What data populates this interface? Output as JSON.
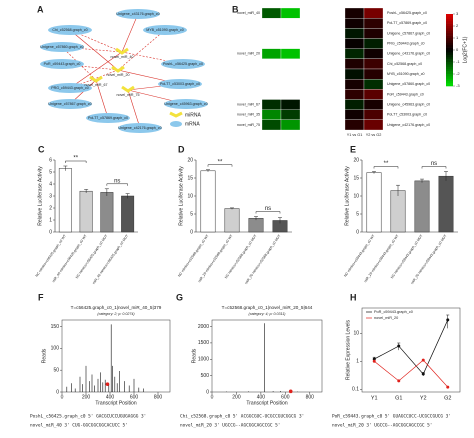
{
  "chart_data": [
    {
      "type": "network",
      "label": "A",
      "mrnas": [
        "Unigene_c43176.graph_c0",
        "Chi_c52568.graph_c0",
        "MYB_c51090.graph_c0",
        "Unigene_c57860.graph_c0",
        "PoR_c59443.graph_c0",
        "PoshL_c56425.graph_c0",
        "PRG_c59443.graph_c0",
        "PoLT7_c53003.graph_c0",
        "Unigene_c57867.graph_c0",
        "Unigene_c45963.graph_c0",
        "PoLT7_c57869.graph_c0",
        "Unigene_c42176.graph_c0"
      ],
      "mirnas": [
        "novel_miR_40",
        "novel_miR_20",
        "novel_miR_67",
        "novel_miR_75"
      ],
      "legend": [
        {
          "name": "miRNA",
          "color": "#f3e23c"
        },
        {
          "name": "mRNA",
          "color": "#8cc8ec"
        }
      ],
      "edge_color": "#d9322b"
    },
    {
      "type": "heatmap",
      "label": "B",
      "left": {
        "rows": [
          "novel_miR_40",
          null,
          null,
          null,
          "novel_miR_20",
          null,
          null,
          null,
          null,
          "novel_miR_67",
          "novel_miR_35",
          "novel_miR_75"
        ],
        "values": [
          [
            -1.2,
            -2.6
          ],
          [
            null,
            null
          ],
          [
            null,
            null
          ],
          [
            null,
            null
          ],
          [
            -2.2,
            -2.6
          ],
          [
            null,
            null
          ],
          [
            null,
            null
          ],
          [
            null,
            null
          ],
          [
            null,
            null
          ],
          [
            -0.6,
            -0.3
          ],
          [
            -1.8,
            -0.8
          ],
          [
            -1.0,
            -2.0
          ]
        ]
      },
      "right": {
        "rows": [
          "PoshL_c56425.graph_c0",
          "PoLT7_c57869.graph_c0",
          "Unigene_c57867.graph_c0",
          "PRG_c59443.graph_c0",
          "Unigene_c43176.graph_c0",
          "Chi_c52568.graph_c0",
          "MYB_c51090.graph_c0",
          "Unigene_c57860.graph_c0",
          "PoR_c59443.graph_c0",
          "Unigene_c45963.graph_c0",
          "PoLT7_c53003.graph_c0",
          "Unigene_c42176.graph_c0"
        ],
        "values": [
          [
            0.3,
            1.6
          ],
          [
            0.2,
            0.6
          ],
          [
            -0.3,
            0.4
          ],
          [
            0.1,
            -0.4
          ],
          [
            -0.5,
            0.2
          ],
          [
            0.4,
            0.8
          ],
          [
            -0.2,
            0.5
          ],
          [
            0.3,
            -0.6
          ],
          [
            0.6,
            1.2
          ],
          [
            -0.4,
            0.3
          ],
          [
            0.2,
            1.0
          ],
          [
            0.5,
            1.4
          ]
        ]
      },
      "columns": [
        "Y1 vs G1",
        "Y2 vs G2"
      ],
      "colorbar": {
        "label": "Log2(FC+1)",
        "lim": [
          -3,
          3
        ],
        "ticks": [
          3,
          2,
          1,
          0,
          -1,
          -2,
          -3
        ],
        "colors": [
          "#00e000",
          "#000000",
          "#e00000"
        ]
      }
    },
    {
      "type": "bar",
      "label": "C",
      "ylabel": "Relative Luciferase Activity",
      "categories": [
        "NC mimics+c56425.graph_c0 WT",
        "miR_40 mimics+c56425.graph_c0 WT",
        "NC mimics+c56425.graph_c0 MUT",
        "miR_40 mimics+c56425.graph_c0 MUT"
      ],
      "values": [
        5.3,
        3.4,
        3.3,
        3.0
      ],
      "errors": [
        0.2,
        0.15,
        0.3,
        0.2
      ],
      "colors": [
        "#ffffff",
        "#cfcfcf",
        "#8c8c8c",
        "#555555"
      ],
      "ylim": [
        0,
        6
      ],
      "yticks": [
        0,
        1,
        2,
        3,
        4,
        5,
        6
      ],
      "annotations": [
        "**",
        "ns"
      ]
    },
    {
      "type": "bar",
      "label": "D",
      "ylabel": "Relative Luciferase Activity",
      "categories": [
        "NC mimics+c52568.graph_c0 WT",
        "miR_20 mimics+c52568.graph_c0 WT",
        "NC mimics+c52568.graph_c0 MUT",
        "miR_20 mimics+c52568.graph_c0 MUT"
      ],
      "values": [
        17,
        6.5,
        3.8,
        3.2
      ],
      "errors": [
        0.3,
        0.2,
        0.5,
        0.8
      ],
      "colors": [
        "#ffffff",
        "#cfcfcf",
        "#8c8c8c",
        "#555555"
      ],
      "ylim": [
        0,
        20
      ],
      "yticks": [
        0,
        5,
        10,
        15,
        20
      ],
      "annotations": [
        "**",
        "ns"
      ]
    },
    {
      "type": "bar",
      "label": "E",
      "ylabel": "Relative Luciferase Activity",
      "categories": [
        "NC mimics+c59443.graph_c0 WT",
        "miR_20 mimics+c59443.graph_c0 WT",
        "NC mimics+c59443.graph_c0 MUT",
        "miR_20 mimics+c59443.graph_c0 MUT"
      ],
      "values": [
        16.5,
        11.5,
        14.2,
        15.5
      ],
      "errors": [
        0.3,
        1.5,
        0.5,
        1.3
      ],
      "colors": [
        "#ffffff",
        "#cfcfcf",
        "#8c8c8c",
        "#555555"
      ],
      "ylim": [
        0,
        20
      ],
      "yticks": [
        0,
        5,
        10,
        15,
        20
      ],
      "annotations": [
        "**",
        "ns"
      ]
    },
    {
      "type": "degradome",
      "label": "F",
      "title": "T=c56425.graph_c0_1|novel_miR_40_5|379",
      "subtitle": "(category: 2; p: 0.0274)",
      "xlabel": "Transcript Position",
      "ylabel": "Reads",
      "x": [
        40,
        80,
        110,
        150,
        170,
        200,
        230,
        250,
        270,
        300,
        320,
        340,
        360,
        390,
        410,
        420,
        440,
        460,
        480,
        520,
        560,
        600,
        640,
        680
      ],
      "values": [
        12,
        20,
        8,
        35,
        18,
        60,
        25,
        40,
        15,
        30,
        45,
        22,
        28,
        18,
        155,
        60,
        35,
        20,
        48,
        25,
        15,
        30,
        10,
        8
      ],
      "color": "#111111",
      "site": {
        "x": 379,
        "value": 18,
        "color": "#e0201b"
      },
      "xlim": [
        0,
        900
      ],
      "xticks": [
        0,
        200,
        400,
        600,
        800
      ],
      "ylim": [
        0,
        165
      ],
      "yticks": [
        0,
        50,
        100,
        150
      ],
      "alignment": [
        "PoshL_c56425.graph_c0 5' GACGCUCCUGUGAGGG 3'",
        "novel_miR_40 3' CUG-GGCGGCGGCACUCC 5'"
      ]
    },
    {
      "type": "degradome",
      "label": "G",
      "title": "T=c52568.graph_c0_1|novel_miR_20_5|644",
      "subtitle": "(category: 4; p: 0.0311)",
      "xlabel": "Transcript Position",
      "ylabel": "Reads",
      "x": [
        120,
        300,
        430,
        500,
        560,
        700
      ],
      "values": [
        15,
        20,
        2100,
        25,
        30,
        12
      ],
      "color": "#111111",
      "site": {
        "x": 644,
        "value": 20,
        "color": "#e0201b"
      },
      "xlim": [
        0,
        900
      ],
      "xticks": [
        0,
        200,
        400,
        600,
        800
      ],
      "ylim": [
        0,
        2200
      ],
      "yticks": [
        0,
        500,
        1000,
        1500,
        2000
      ],
      "alignment": [
        "Chi_c52568.graph_c0 5' ACGGCGUC-UCGCCGUCGGCG 3'",
        "novel_miR_20 3' UGCCG--AGCGGCAGCCGC 5'"
      ]
    },
    {
      "type": "line",
      "label": "H",
      "ylabel": "Relative Expression Levels",
      "log": true,
      "categories": [
        "Y1",
        "G1",
        "Y2",
        "G2"
      ],
      "series": [
        {
          "name": "PoR_c59443.graph_c0",
          "color": "#111111",
          "values": [
            1.2,
            3.5,
            0.35,
            30
          ],
          "errors": [
            0.2,
            1.0,
            0.05,
            15
          ]
        },
        {
          "name": "novel_miR_20",
          "color": "#e0201b",
          "values": [
            1,
            0.2,
            1.1,
            0.12
          ]
        }
      ],
      "ylim": [
        0.08,
        80
      ],
      "yticks": [
        0.1,
        1,
        10
      ],
      "legend": "upper left",
      "alignment": [
        "PoR_c59443.graph_c0 5' GUAGCCUCC-UCGCCGUCG 3'",
        "novel_miR_20 3' UGCCG--AGCGGCAGCCGC 5'"
      ]
    }
  ]
}
